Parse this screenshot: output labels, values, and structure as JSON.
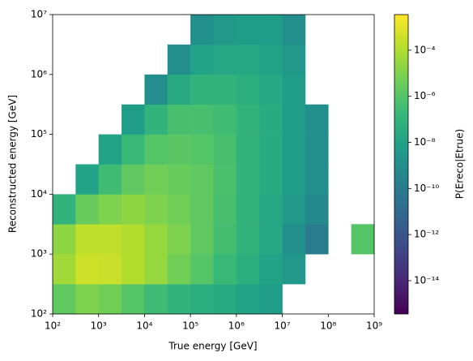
{
  "chart_data": {
    "type": "heatmap",
    "xlabel": "True energy [GeV]",
    "ylabel": "Reconstructed energy [GeV]",
    "colorbar_label": "P(Ereco|Etrue)",
    "log_x": true,
    "log_y": true,
    "log_color": true,
    "colormap": "viridis",
    "xlim": [
      100,
      1000000000
    ],
    "ylim": [
      100,
      10000000
    ],
    "xticks": [
      {
        "value": 100,
        "label": "10²"
      },
      {
        "value": 1000,
        "label": "10³"
      },
      {
        "value": 10000,
        "label": "10⁴"
      },
      {
        "value": 100000,
        "label": "10⁵"
      },
      {
        "value": 1000000,
        "label": "10⁶"
      },
      {
        "value": 10000000,
        "label": "10⁷"
      },
      {
        "value": 100000000,
        "label": "10⁸"
      },
      {
        "value": 1000000000,
        "label": "10⁹"
      }
    ],
    "yticks": [
      {
        "value": 100,
        "label": "10²"
      },
      {
        "value": 1000,
        "label": "10³"
      },
      {
        "value": 10000,
        "label": "10⁴"
      },
      {
        "value": 100000,
        "label": "10⁵"
      },
      {
        "value": 1000000,
        "label": "10⁶"
      },
      {
        "value": 10000000,
        "label": "10⁷"
      }
    ],
    "clim": [
      3.6e-16,
      0.0035
    ],
    "cticks": [
      {
        "value": 1e-14,
        "label": "10⁻¹⁴"
      },
      {
        "value": 1e-12,
        "label": "10⁻¹²"
      },
      {
        "value": 1e-10,
        "label": "10⁻¹⁰"
      },
      {
        "value": 1e-08,
        "label": "10⁻⁸"
      },
      {
        "value": 1e-06,
        "label": "10⁻⁶"
      },
      {
        "value": 0.0001,
        "label": "10⁻⁴"
      }
    ],
    "xbins": [
      100,
      316.2,
      1000,
      3162,
      10000,
      31623,
      100000,
      316228,
      1000000,
      3162278,
      10000000,
      31622777,
      100000000,
      316227766,
      1000000000
    ],
    "ybins": [
      100,
      316.2,
      1000,
      3162,
      10000,
      31623,
      100000,
      316228,
      1000000,
      3162278,
      10000000
    ],
    "values": [
      [
        2e-06,
        1e-05,
        5e-06,
        1e-06,
        3e-07,
        1e-07,
        5e-08,
        3e-08,
        1e-08,
        5e-09,
        null,
        null,
        null,
        null
      ],
      [
        5e-05,
        0.0004,
        0.0003,
        0.0001,
        3e-05,
        5e-06,
        1e-06,
        2e-07,
        5e-08,
        1e-08,
        3e-09,
        null,
        null,
        null
      ],
      [
        2e-05,
        0.0002,
        0.0002,
        0.0001,
        3e-05,
        1e-05,
        2e-06,
        4e-07,
        1e-07,
        2e-08,
        1e-09,
        1e-10,
        null,
        1e-06
      ],
      [
        1e-07,
        3e-06,
        1e-05,
        2e-05,
        1e-05,
        5e-06,
        2e-06,
        5e-07,
        1e-07,
        2e-08,
        3e-09,
        5e-10,
        null,
        null
      ],
      [
        null,
        1e-08,
        3e-07,
        2e-06,
        5e-06,
        3e-06,
        2e-06,
        6e-07,
        1e-07,
        3e-08,
        5e-09,
        1e-09,
        null,
        null
      ],
      [
        null,
        null,
        1e-08,
        2e-07,
        1e-06,
        1.5e-06,
        1e-06,
        5e-07,
        1e-07,
        3e-08,
        5e-09,
        1e-09,
        null,
        null
      ],
      [
        null,
        null,
        null,
        5e-09,
        1e-07,
        5e-07,
        5e-07,
        3e-07,
        1e-07,
        3e-08,
        5e-09,
        1e-09,
        null,
        null
      ],
      [
        null,
        null,
        null,
        null,
        1e-09,
        3e-08,
        1e-07,
        1e-07,
        5e-08,
        2e-08,
        5e-09,
        null,
        null,
        null
      ],
      [
        null,
        null,
        null,
        null,
        null,
        1e-09,
        1e-08,
        2e-08,
        2e-08,
        1e-08,
        3e-09,
        null,
        null,
        null
      ],
      [
        null,
        null,
        null,
        null,
        null,
        null,
        1e-09,
        3e-09,
        5e-09,
        5e-09,
        1e-09,
        null,
        null,
        null
      ]
    ]
  }
}
